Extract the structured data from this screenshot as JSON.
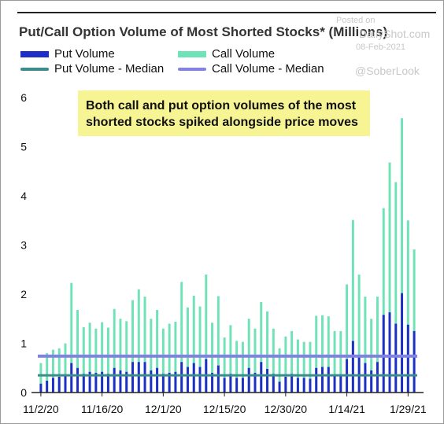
{
  "title": "Put/Call Option Volume of Most Shorted Stocks* (Millions)",
  "legend": {
    "put_volume": "Put Volume",
    "call_volume": "Call Volume",
    "put_median": "Put Volume - Median",
    "call_median": "Call Volume - Median"
  },
  "watermark": {
    "posted_on": "Posted on",
    "site": "DailyShot.com",
    "date": "08-Feb-2021",
    "handle": "@SoberLook"
  },
  "annotation": {
    "line1": "Both call and put option volumes of the most",
    "line2": "shorted stocks spiked alongside price moves"
  },
  "colors": {
    "put": "#1f2fc6",
    "call": "#6fe3b7",
    "put_median": "#3c8c8c",
    "call_median": "#8282e0",
    "callout_bg": "#f6f493"
  },
  "chart_data": {
    "type": "bar",
    "x_tick_labels": [
      "11/2/20",
      "11/16/20",
      "12/1/20",
      "12/15/20",
      "12/30/20",
      "1/14/21",
      "1/29/21"
    ],
    "x_tick_indices": [
      0,
      10,
      20,
      30,
      40,
      50,
      60
    ],
    "ylim": [
      0,
      6
    ],
    "yticks": [
      0,
      1,
      2,
      3,
      4,
      5,
      6
    ],
    "grid": false,
    "series": [
      {
        "name": "Call Volume",
        "values": [
          0.6,
          0.8,
          0.87,
          0.9,
          1.0,
          2.23,
          1.68,
          1.33,
          1.42,
          1.3,
          1.43,
          1.32,
          1.7,
          1.5,
          1.45,
          1.88,
          2.1,
          1.95,
          1.5,
          1.68,
          1.3,
          1.4,
          1.44,
          2.25,
          1.73,
          1.97,
          1.75,
          2.4,
          1.42,
          1.96,
          1.12,
          1.37,
          1.05,
          1.03,
          1.5,
          1.3,
          1.84,
          1.65,
          1.3,
          0.9,
          1.14,
          1.25,
          1.08,
          1.03,
          1.03,
          1.56,
          1.57,
          1.55,
          1.25,
          1.25,
          2.2,
          3.51,
          2.4,
          1.95,
          1.5,
          1.95,
          3.75,
          4.68,
          4.28,
          5.58,
          3.5,
          2.91
        ]
      },
      {
        "name": "Put Volume",
        "values": [
          0.18,
          0.24,
          0.3,
          0.32,
          0.35,
          0.6,
          0.5,
          0.38,
          0.42,
          0.4,
          0.42,
          0.38,
          0.5,
          0.45,
          0.42,
          0.62,
          0.62,
          0.62,
          0.45,
          0.5,
          0.38,
          0.4,
          0.42,
          0.62,
          0.52,
          0.6,
          0.52,
          0.68,
          0.4,
          0.55,
          0.3,
          0.38,
          0.3,
          0.3,
          0.5,
          0.4,
          0.62,
          0.48,
          0.38,
          0.22,
          0.32,
          0.38,
          0.3,
          0.3,
          0.28,
          0.5,
          0.52,
          0.52,
          0.35,
          0.35,
          0.68,
          1.05,
          0.72,
          0.6,
          0.45,
          0.62,
          1.58,
          1.63,
          1.4,
          2.02,
          1.38,
          1.25
        ]
      },
      {
        "name": "Put Volume - Median",
        "values": [
          0.35
        ]
      },
      {
        "name": "Call Volume - Median",
        "values": [
          0.74
        ]
      }
    ]
  }
}
